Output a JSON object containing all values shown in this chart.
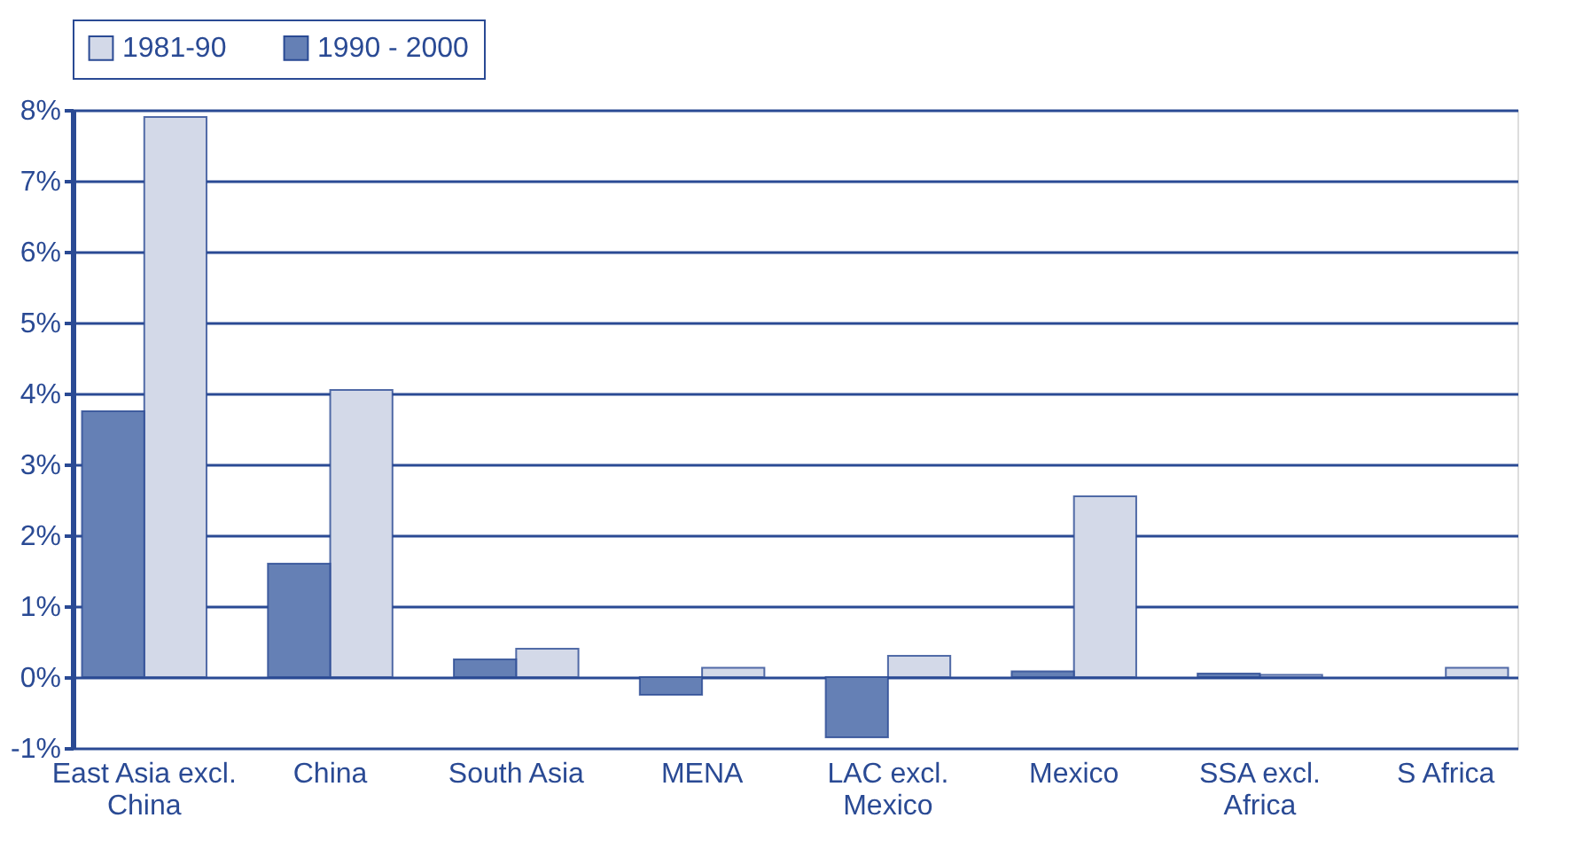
{
  "chart_data": {
    "type": "bar",
    "categories": [
      "East Asia excl.\nChina",
      "China",
      "South Asia",
      "MENA",
      "LAC excl.\nMexico",
      "Mexico",
      "SSA excl.\nAfrica",
      "S Africa"
    ],
    "series": [
      {
        "name": "1981-90",
        "color": "#d3d9e8",
        "values": [
          7.9,
          4.05,
          0.4,
          0.13,
          0.3,
          2.55,
          0.03,
          0.13
        ]
      },
      {
        "name": "1990 - 2000",
        "color": "#6580b5",
        "values": [
          3.75,
          1.6,
          0.25,
          -0.25,
          -0.85,
          0.08,
          0.05,
          null
        ]
      }
    ],
    "ylim": [
      -1,
      8
    ],
    "yticks": [
      {
        "value": -1,
        "label": "-1%"
      },
      {
        "value": 0,
        "label": "0%"
      },
      {
        "value": 1,
        "label": "1%"
      },
      {
        "value": 2,
        "label": "2%"
      },
      {
        "value": 3,
        "label": "3%"
      },
      {
        "value": 4,
        "label": "4%"
      },
      {
        "value": 5,
        "label": "5%"
      },
      {
        "value": 6,
        "label": "6%"
      },
      {
        "value": 7,
        "label": "7%"
      },
      {
        "value": 8,
        "label": "8%"
      }
    ],
    "grid": "y",
    "legend": "top"
  }
}
